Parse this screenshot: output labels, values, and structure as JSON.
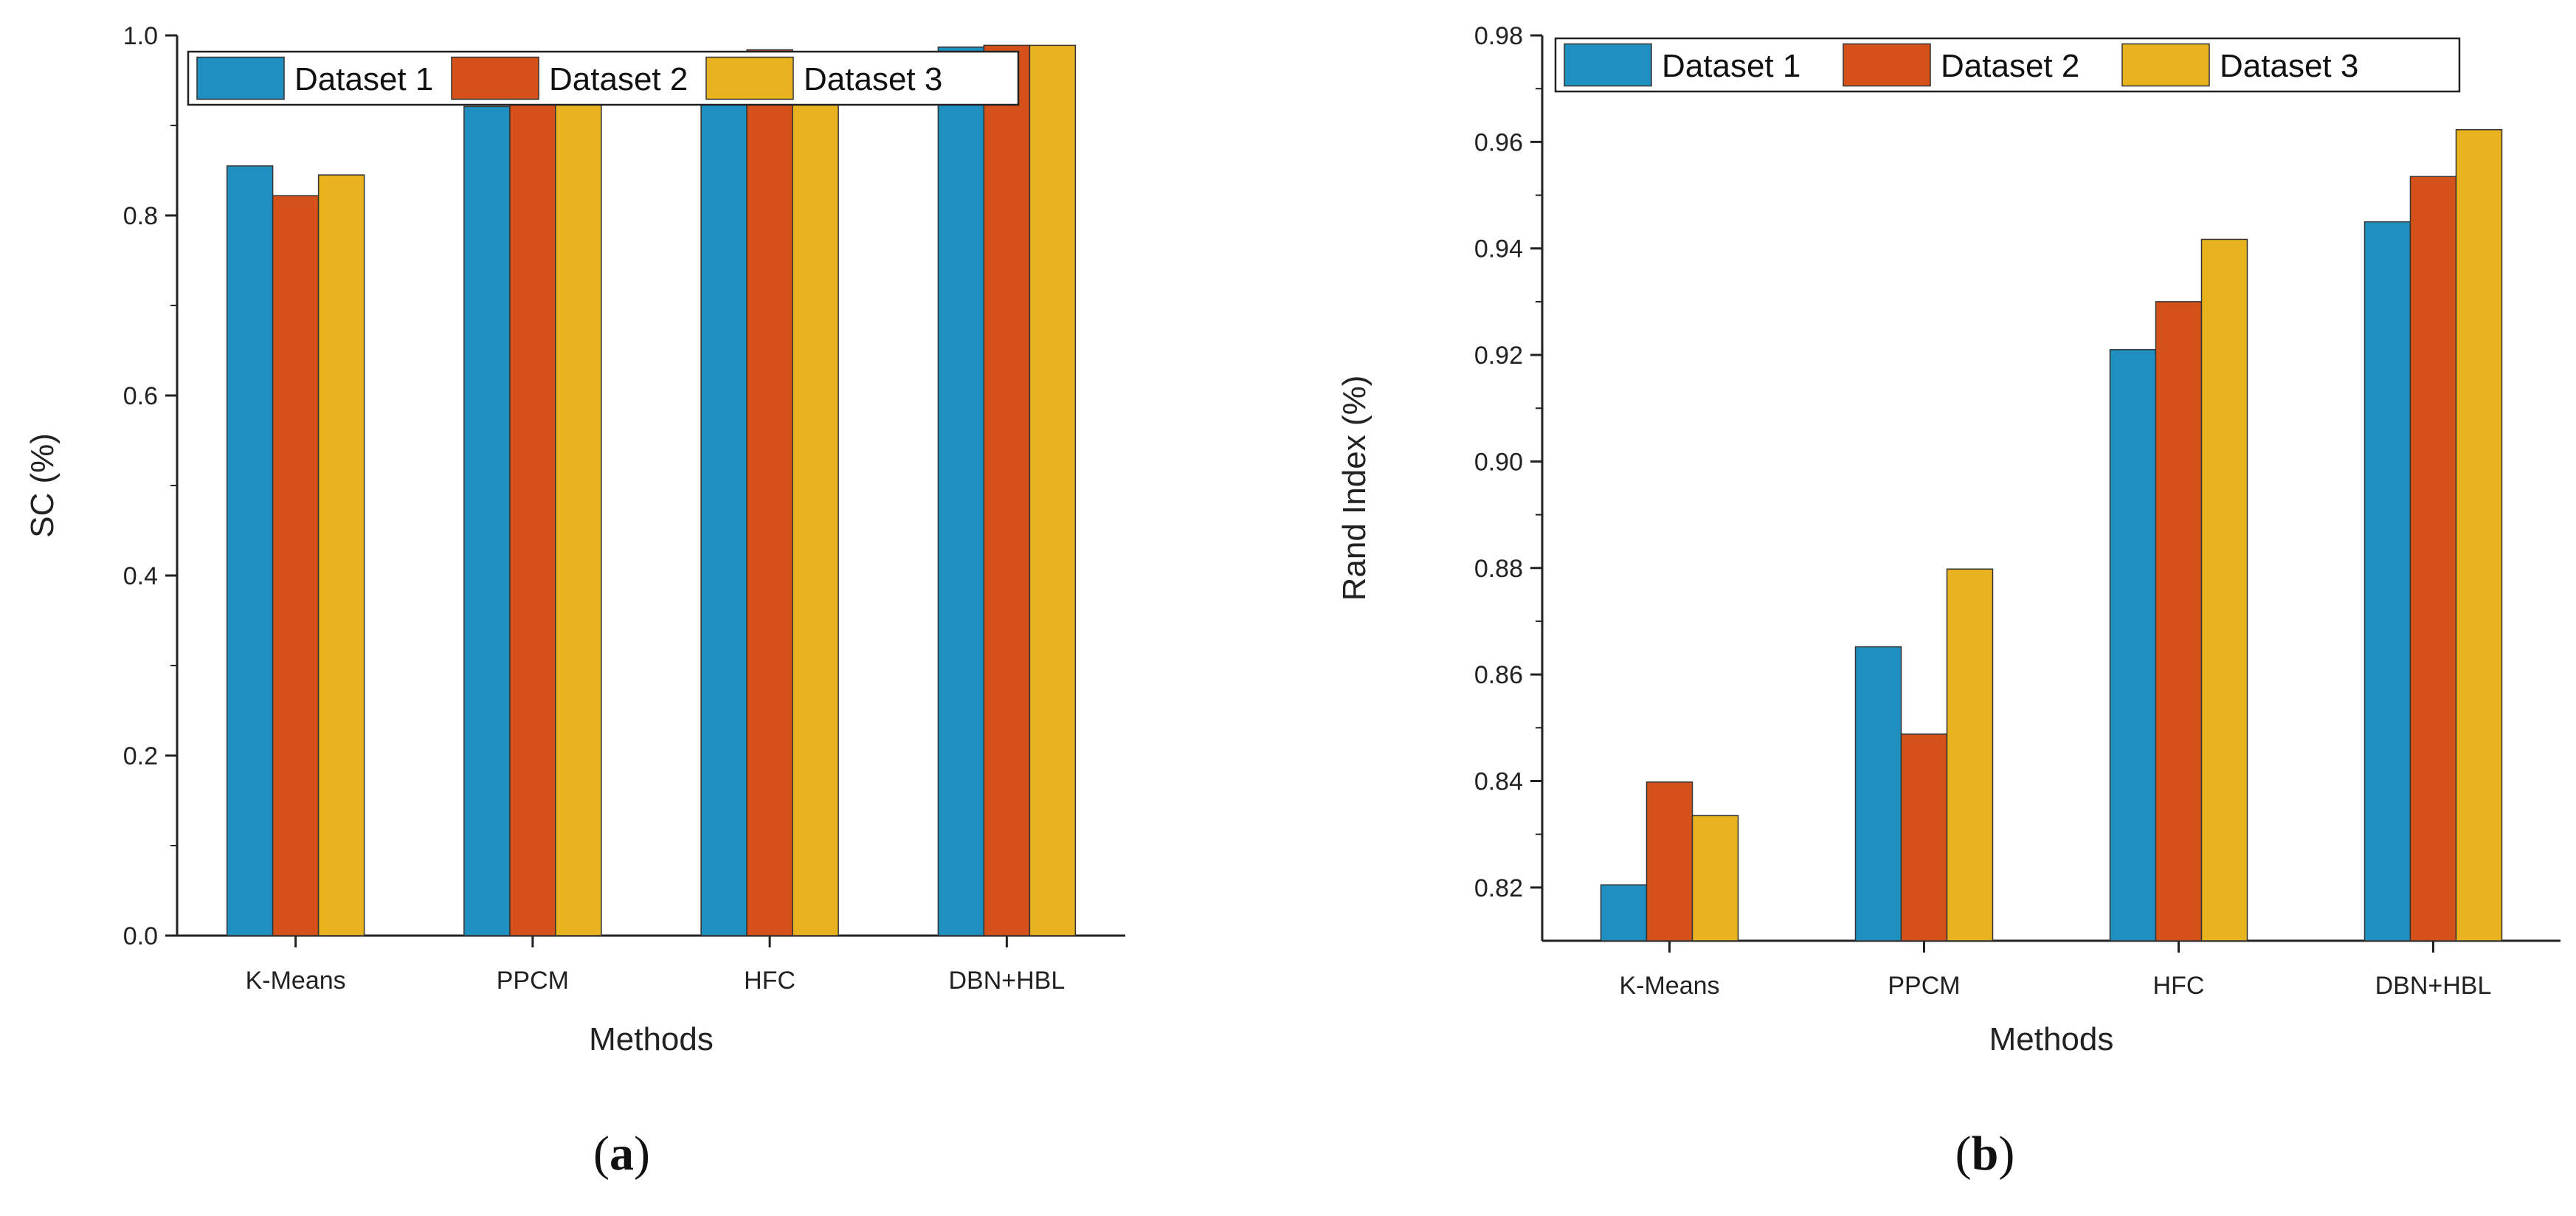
{
  "figure": {
    "title": ""
  },
  "chart_data": [
    {
      "type": "bar",
      "title": "",
      "xlabel": "Methods",
      "ylabel": "SC (%)",
      "categories": [
        "K-Means",
        "PPCM",
        "HFC",
        "DBN+HBL"
      ],
      "series": [
        {
          "name": "Dataset 1",
          "color": "#1f8fbf",
          "values": [
            0.855,
            0.921,
            0.982,
            0.987
          ]
        },
        {
          "name": "Dataset 2",
          "color": "#d4521a",
          "values": [
            0.822,
            0.945,
            0.984,
            0.989
          ]
        },
        {
          "name": "Dataset 3",
          "color": "#e9b21f",
          "values": [
            0.845,
            0.958,
            0.976,
            0.989
          ]
        }
      ],
      "ylim": [
        0.0,
        1.0
      ],
      "yticks": [
        "0.0",
        "0.2",
        "0.4",
        "0.6",
        "0.8",
        "1.0"
      ],
      "grid": false,
      "legend_position": "top",
      "caption": {
        "open": "(",
        "letter": "a",
        "close": ")"
      }
    },
    {
      "type": "bar",
      "title": "",
      "xlabel": "Methods",
      "ylabel": "Rand Index (%)",
      "categories": [
        "K-Means",
        "PPCM",
        "HFC",
        "DBN+HBL"
      ],
      "series": [
        {
          "name": "Dataset 1",
          "color": "#1f8fbf",
          "values": [
            0.8205,
            0.8652,
            0.921,
            0.945
          ]
        },
        {
          "name": "Dataset 2",
          "color": "#d4521a",
          "values": [
            0.8398,
            0.8488,
            0.93,
            0.9535
          ]
        },
        {
          "name": "Dataset 3",
          "color": "#e9b21f",
          "values": [
            0.8335,
            0.8798,
            0.9417,
            0.9623
          ]
        }
      ],
      "ylim": [
        0.81,
        0.98
      ],
      "yticks": [
        "0.82",
        "0.84",
        "0.86",
        "0.88",
        "0.90",
        "0.92",
        "0.94",
        "0.96",
        "0.98"
      ],
      "grid": false,
      "legend_position": "top",
      "caption": {
        "open": "(",
        "letter": "b",
        "close": ")"
      }
    }
  ]
}
